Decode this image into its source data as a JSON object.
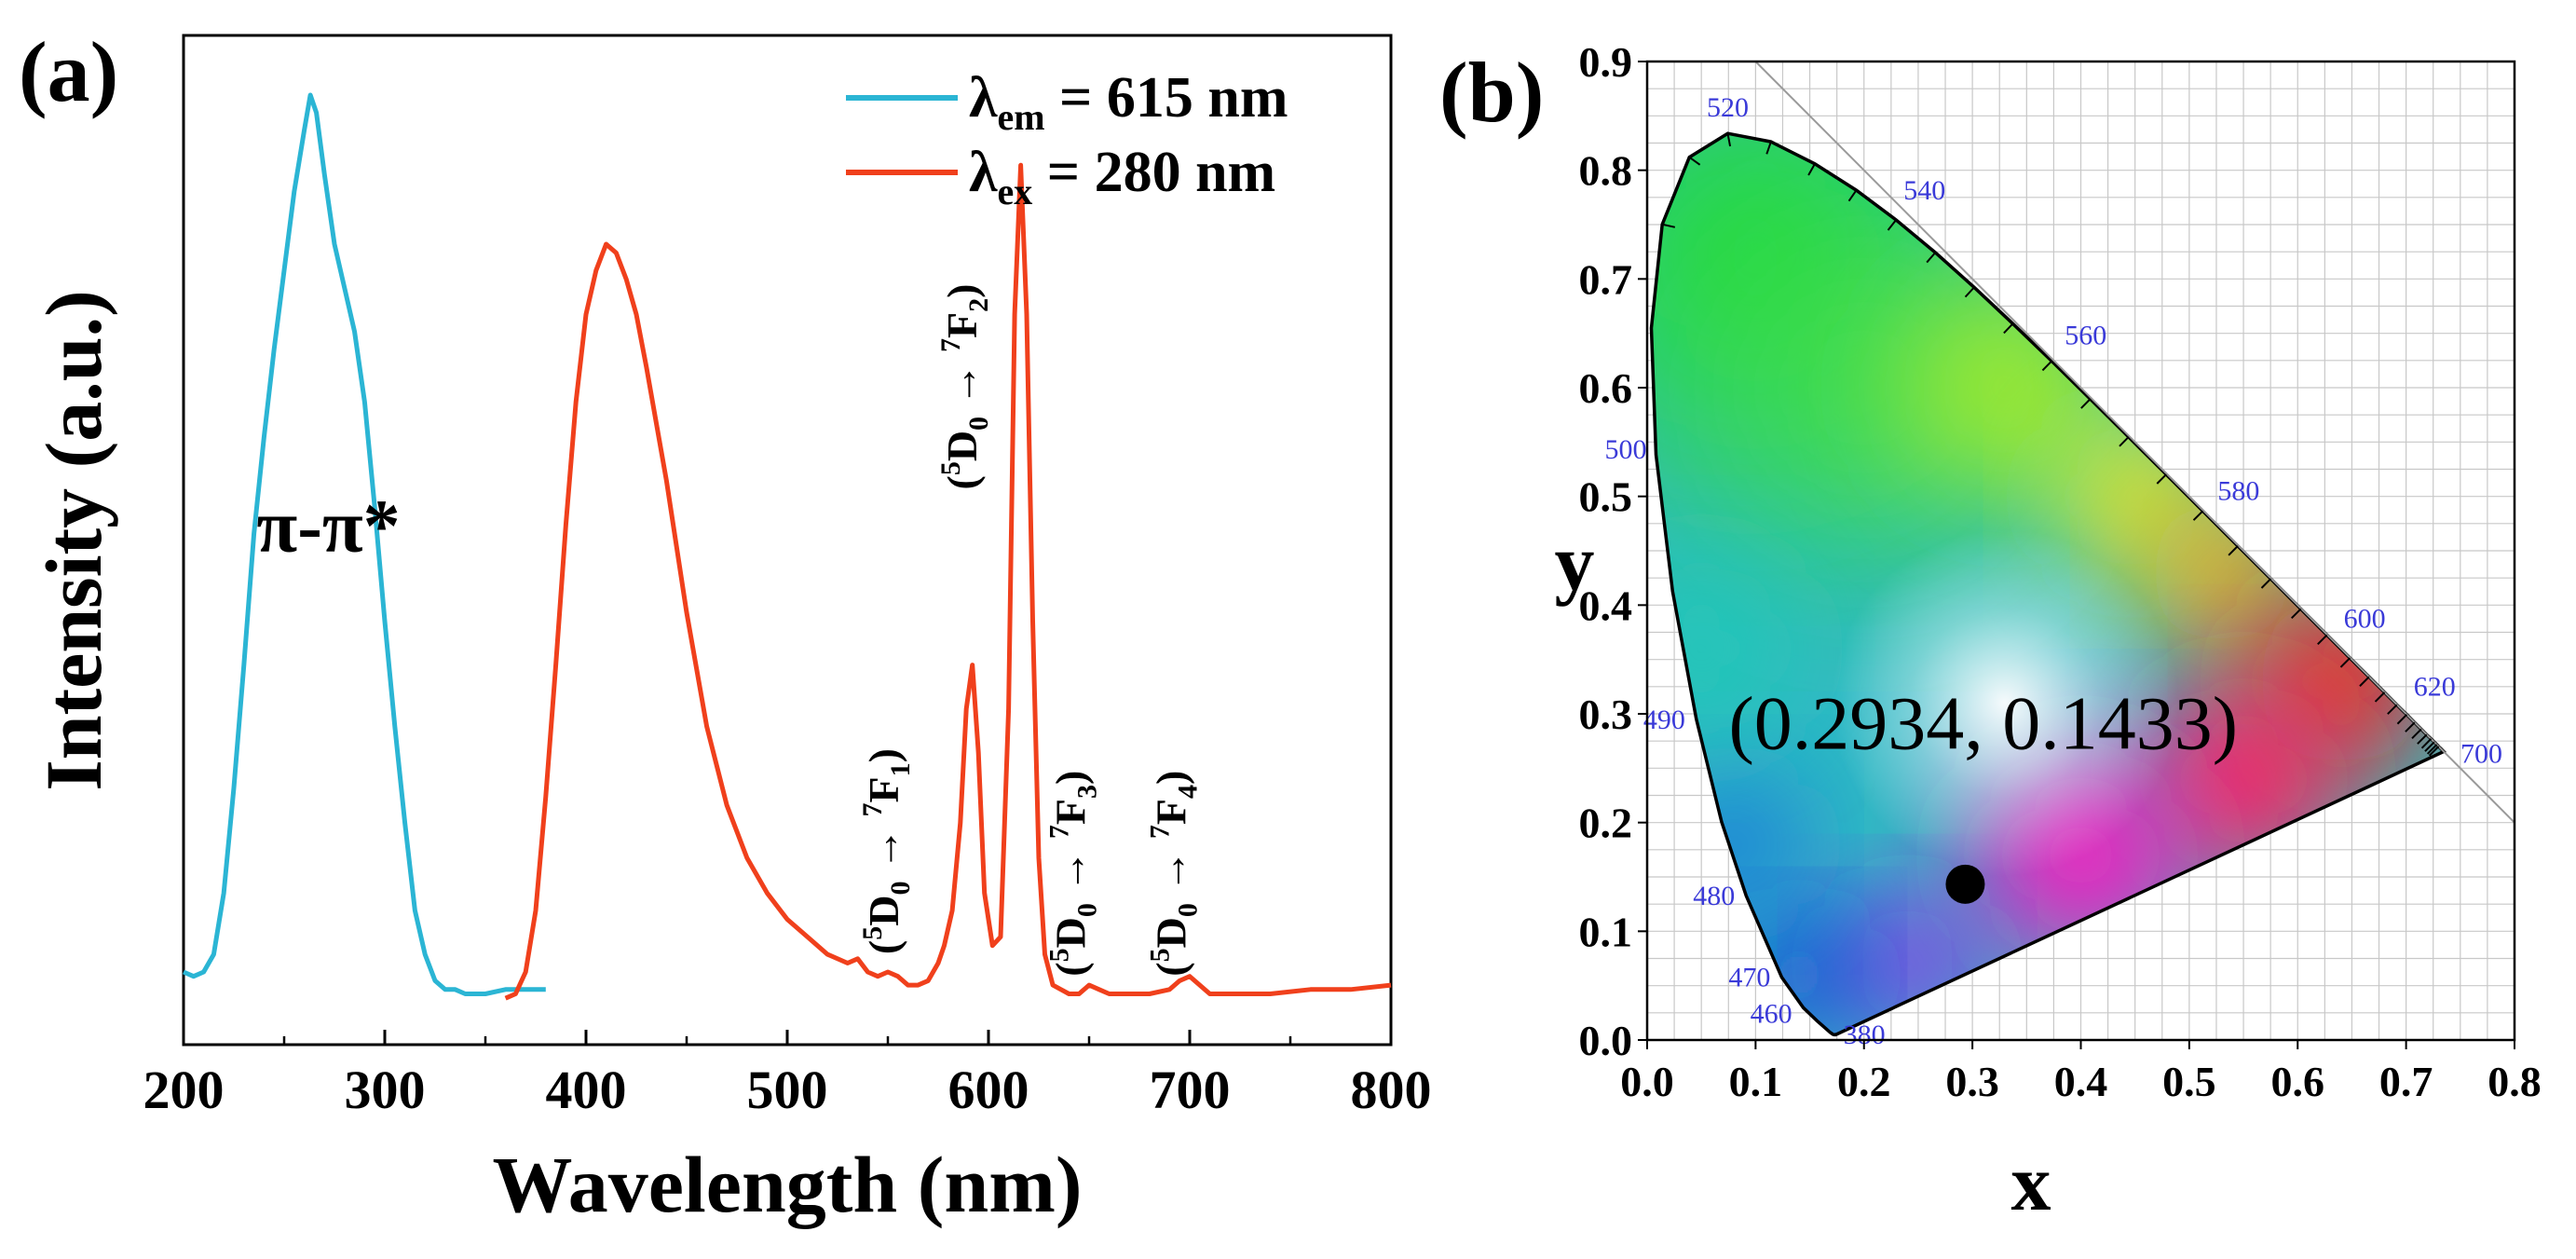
{
  "figure": {
    "panel_a_label": "(a)",
    "panel_b_label": "(b)"
  },
  "colors": {
    "excitation": "#2bb5d4",
    "emission": "#f0401c",
    "axis": "#000000",
    "grid": "#c8c8c8",
    "wavelength_label": "#3a3ad8",
    "marker": "#000000"
  },
  "chart_data": [
    {
      "id": "spectra",
      "type": "line",
      "title": "",
      "xlabel": "Wavelength (nm)",
      "ylabel": "Intensity (a.u.)",
      "xlim": [
        200,
        800
      ],
      "ylim": [
        0,
        1.1
      ],
      "xticks": [
        200,
        300,
        400,
        500,
        600,
        700,
        800
      ],
      "xtick_labels": [
        "200",
        "300",
        "400",
        "500",
        "600",
        "700",
        "800"
      ],
      "legend": {
        "position": "top-right",
        "entries": [
          {
            "lambda": "λ",
            "sub": "em",
            "text": " = 615 nm",
            "series": "excitation"
          },
          {
            "lambda": "λ",
            "sub": "ex",
            "text": " = 280 nm",
            "series": "emission"
          }
        ]
      },
      "series": [
        {
          "name": "excitation",
          "label": "λem = 615 nm",
          "x": [
            200,
            205,
            210,
            215,
            220,
            225,
            230,
            235,
            240,
            245,
            250,
            255,
            260,
            263,
            266,
            270,
            275,
            280,
            285,
            290,
            295,
            300,
            305,
            310,
            315,
            320,
            325,
            330,
            335,
            340,
            345,
            350,
            360,
            370,
            380
          ],
          "values": [
            0.05,
            0.045,
            0.05,
            0.07,
            0.14,
            0.26,
            0.4,
            0.55,
            0.66,
            0.76,
            0.85,
            0.94,
            1.01,
            1.05,
            1.03,
            0.96,
            0.88,
            0.83,
            0.78,
            0.7,
            0.58,
            0.45,
            0.33,
            0.22,
            0.12,
            0.07,
            0.04,
            0.03,
            0.03,
            0.025,
            0.025,
            0.025,
            0.03,
            0.03,
            0.03
          ]
        },
        {
          "name": "emission",
          "label": "λex = 280 nm",
          "x": [
            360,
            365,
            370,
            375,
            380,
            385,
            390,
            395,
            400,
            405,
            410,
            415,
            420,
            425,
            430,
            440,
            450,
            460,
            470,
            480,
            490,
            500,
            510,
            520,
            530,
            535,
            540,
            545,
            550,
            555,
            560,
            565,
            570,
            575,
            578,
            582,
            586,
            589,
            592,
            595,
            598,
            602,
            606,
            610,
            613,
            616,
            619,
            622,
            625,
            628,
            632,
            636,
            640,
            645,
            650,
            655,
            660,
            670,
            680,
            690,
            695,
            700,
            705,
            710,
            720,
            740,
            760,
            780,
            800
          ],
          "values": [
            0.02,
            0.025,
            0.05,
            0.12,
            0.25,
            0.4,
            0.56,
            0.7,
            0.8,
            0.85,
            0.88,
            0.87,
            0.84,
            0.8,
            0.74,
            0.61,
            0.46,
            0.33,
            0.24,
            0.18,
            0.14,
            0.11,
            0.09,
            0.07,
            0.06,
            0.065,
            0.05,
            0.045,
            0.05,
            0.045,
            0.035,
            0.035,
            0.04,
            0.06,
            0.08,
            0.12,
            0.22,
            0.35,
            0.4,
            0.3,
            0.14,
            0.08,
            0.09,
            0.35,
            0.8,
            0.97,
            0.8,
            0.45,
            0.18,
            0.07,
            0.035,
            0.03,
            0.025,
            0.025,
            0.035,
            0.03,
            0.025,
            0.025,
            0.025,
            0.03,
            0.04,
            0.045,
            0.035,
            0.025,
            0.025,
            0.025,
            0.03,
            0.03,
            0.035
          ]
        }
      ],
      "annotations": [
        {
          "label": "pi-pi-star",
          "text": "π-π*",
          "x": 272,
          "y": 0.53
        },
        {
          "label": "transition-7F1",
          "prefix": "(",
          "s1": "5",
          "d": "D",
          "s2": "0",
          "arrow": " → ",
          "s3": "7",
          "f": "F",
          "s4": "1",
          "suffix": ")",
          "x": 555,
          "y": 0.07
        },
        {
          "label": "transition-7F2",
          "prefix": "(",
          "s1": "5",
          "d": "D",
          "s2": "0",
          "arrow": " → ",
          "s3": "7",
          "f": "F",
          "s4": "2",
          "suffix": ")",
          "x": 594,
          "y": 0.6
        },
        {
          "label": "transition-7F3",
          "prefix": "(",
          "s1": "5",
          "d": "D",
          "s2": "0",
          "arrow": " → ",
          "s3": "7",
          "f": "F",
          "s4": "3",
          "suffix": ")",
          "x": 648,
          "y": 0.045
        },
        {
          "label": "transition-7F4",
          "prefix": "(",
          "s1": "5",
          "d": "D",
          "s2": "0",
          "arrow": " → ",
          "s3": "7",
          "f": "F",
          "s4": "4",
          "suffix": ")",
          "x": 698,
          "y": 0.045
        }
      ]
    },
    {
      "id": "cie",
      "type": "scatter",
      "title": "",
      "xlabel": "x",
      "ylabel": "y",
      "xlim": [
        0.0,
        0.8
      ],
      "ylim": [
        0.0,
        0.9
      ],
      "xticks": [
        0.0,
        0.1,
        0.2,
        0.3,
        0.4,
        0.5,
        0.6,
        0.7,
        0.8
      ],
      "xtick_labels": [
        "0.0",
        "0.1",
        "0.2",
        "0.3",
        "0.4",
        "0.5",
        "0.6",
        "0.7",
        "0.8"
      ],
      "yticks": [
        0.0,
        0.1,
        0.2,
        0.3,
        0.4,
        0.5,
        0.6,
        0.7,
        0.8,
        0.9
      ],
      "ytick_labels": [
        "0.0",
        "0.1",
        "0.2",
        "0.3",
        "0.4",
        "0.5",
        "0.6",
        "0.7",
        "0.8",
        "0.9"
      ],
      "grid": true,
      "point": {
        "x": 0.2934,
        "y": 0.1433,
        "label": "(0.2934, 0.1433)"
      },
      "locus": [
        [
          0.1741,
          0.005
        ],
        [
          0.174,
          0.005
        ],
        [
          0.1738,
          0.0049
        ],
        [
          0.1736,
          0.005
        ],
        [
          0.1733,
          0.0048
        ],
        [
          0.1726,
          0.0048
        ],
        [
          0.1714,
          0.0051
        ],
        [
          0.1689,
          0.0069
        ],
        [
          0.1644,
          0.0109
        ],
        [
          0.1566,
          0.0177
        ],
        [
          0.144,
          0.0297
        ],
        [
          0.1241,
          0.0578
        ],
        [
          0.0913,
          0.1327
        ],
        [
          0.0687,
          0.2007
        ],
        [
          0.0454,
          0.295
        ],
        [
          0.0235,
          0.4127
        ],
        [
          0.0082,
          0.5384
        ],
        [
          0.0039,
          0.6548
        ],
        [
          0.0139,
          0.7502
        ],
        [
          0.0389,
          0.812
        ],
        [
          0.0743,
          0.8338
        ],
        [
          0.1142,
          0.8262
        ],
        [
          0.1547,
          0.8059
        ],
        [
          0.1929,
          0.7816
        ],
        [
          0.2296,
          0.7543
        ],
        [
          0.2658,
          0.7243
        ],
        [
          0.3016,
          0.6923
        ],
        [
          0.3373,
          0.6589
        ],
        [
          0.3731,
          0.6245
        ],
        [
          0.4087,
          0.5896
        ],
        [
          0.4441,
          0.5547
        ],
        [
          0.4788,
          0.5202
        ],
        [
          0.5125,
          0.4866
        ],
        [
          0.5448,
          0.4544
        ],
        [
          0.5752,
          0.4242
        ],
        [
          0.6029,
          0.3965
        ],
        [
          0.627,
          0.3725
        ],
        [
          0.6482,
          0.3514
        ],
        [
          0.6658,
          0.334
        ],
        [
          0.6801,
          0.3197
        ],
        [
          0.6915,
          0.3083
        ],
        [
          0.7006,
          0.2993
        ],
        [
          0.7079,
          0.292
        ],
        [
          0.714,
          0.2859
        ],
        [
          0.719,
          0.2809
        ],
        [
          0.723,
          0.277
        ],
        [
          0.726,
          0.274
        ],
        [
          0.7283,
          0.2717
        ],
        [
          0.73,
          0.27
        ],
        [
          0.7311,
          0.2689
        ],
        [
          0.732,
          0.268
        ],
        [
          0.7347,
          0.2653
        ]
      ],
      "wavelength_labels": [
        {
          "text": "520",
          "x": 0.0743,
          "y": 0.8338
        },
        {
          "text": "540",
          "x": 0.2296,
          "y": 0.7543
        },
        {
          "text": "560",
          "x": 0.3731,
          "y": 0.6245
        },
        {
          "text": "580",
          "x": 0.5125,
          "y": 0.4866
        },
        {
          "text": "600",
          "x": 0.627,
          "y": 0.3725
        },
        {
          "text": "620",
          "x": 0.6915,
          "y": 0.3083
        },
        {
          "text": "700",
          "x": 0.7347,
          "y": 0.2653
        },
        {
          "text": "500",
          "x": 0.0082,
          "y": 0.5384
        },
        {
          "text": "490",
          "x": 0.0454,
          "y": 0.295
        },
        {
          "text": "480",
          "x": 0.0913,
          "y": 0.1327
        },
        {
          "text": "470",
          "x": 0.1241,
          "y": 0.0578
        },
        {
          "text": "460",
          "x": 0.144,
          "y": 0.0297
        },
        {
          "text": "380",
          "x": 0.1741,
          "y": 0.005
        }
      ]
    }
  ]
}
